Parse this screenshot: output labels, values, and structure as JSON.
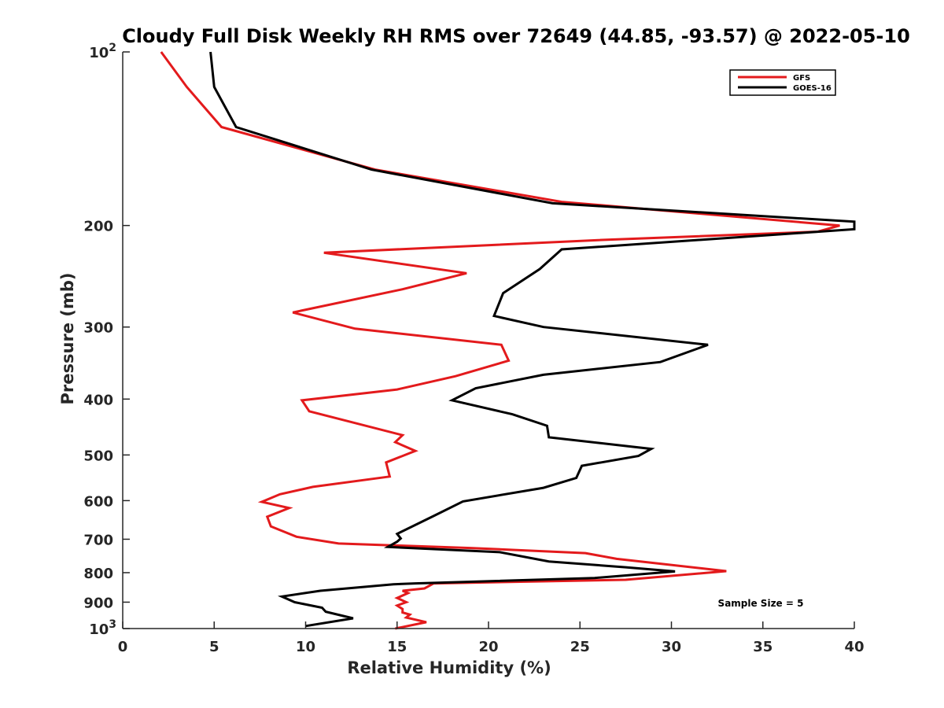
{
  "chart_data": {
    "type": "line",
    "title": "Cloudy Full Disk Weekly RH RMS over 72649 (44.85, -93.57) @ 2022-05-10",
    "xlabel": "Relative Humidity (%)",
    "ylabel": "Pressure (mb)",
    "xlim": [
      0,
      40
    ],
    "ylim": [
      100,
      1000
    ],
    "yscale": "log",
    "yreversed": true,
    "grid": false,
    "legend_position": "top-right",
    "x_ticks": [
      "0",
      "5",
      "10",
      "15",
      "20",
      "25",
      "30",
      "35",
      "40"
    ],
    "y_ticks": [
      {
        "value": 100,
        "label": "10",
        "sup": "2"
      },
      {
        "value": 200,
        "label": "200",
        "sup": ""
      },
      {
        "value": 300,
        "label": "300",
        "sup": ""
      },
      {
        "value": 400,
        "label": "400",
        "sup": ""
      },
      {
        "value": 500,
        "label": "500",
        "sup": ""
      },
      {
        "value": 600,
        "label": "600",
        "sup": ""
      },
      {
        "value": 700,
        "label": "700",
        "sup": ""
      },
      {
        "value": 800,
        "label": "800",
        "sup": ""
      },
      {
        "value": 900,
        "label": "900",
        "sup": ""
      },
      {
        "value": 1000,
        "label": "10",
        "sup": "3"
      }
    ],
    "annotation": "Sample Size = 5",
    "series": [
      {
        "name": "GFS",
        "color": "#e31a1c",
        "points": [
          [
            2.1,
            100
          ],
          [
            3.5,
            115
          ],
          [
            5.4,
            135
          ],
          [
            13.8,
            160
          ],
          [
            24.0,
            182
          ],
          [
            39.2,
            200
          ],
          [
            38.0,
            205
          ],
          [
            26.0,
            212
          ],
          [
            11.0,
            223
          ],
          [
            18.8,
            242
          ],
          [
            15.3,
            258
          ],
          [
            9.3,
            283
          ],
          [
            12.7,
            302
          ],
          [
            20.7,
            322
          ],
          [
            21.1,
            343
          ],
          [
            18.2,
            365
          ],
          [
            15.0,
            385
          ],
          [
            9.8,
            402
          ],
          [
            10.2,
            420
          ],
          [
            15.3,
            462
          ],
          [
            14.9,
            475
          ],
          [
            16.0,
            492
          ],
          [
            14.4,
            515
          ],
          [
            14.6,
            545
          ],
          [
            10.4,
            568
          ],
          [
            8.6,
            585
          ],
          [
            7.6,
            603
          ],
          [
            9.1,
            618
          ],
          [
            7.9,
            640
          ],
          [
            8.1,
            665
          ],
          [
            9.5,
            693
          ],
          [
            11.8,
            712
          ],
          [
            19.0,
            725
          ],
          [
            25.3,
            740
          ],
          [
            27.0,
            757
          ],
          [
            33.0,
            795
          ],
          [
            27.5,
            823
          ],
          [
            17.0,
            835
          ],
          [
            16.5,
            852
          ],
          [
            15.3,
            860
          ],
          [
            15.6,
            868
          ],
          [
            15.0,
            885
          ],
          [
            15.5,
            900
          ],
          [
            15.0,
            912
          ],
          [
            15.3,
            925
          ],
          [
            15.3,
            938
          ],
          [
            15.7,
            946
          ],
          [
            15.5,
            957
          ],
          [
            16.6,
            975
          ],
          [
            14.9,
            1000
          ]
        ]
      },
      {
        "name": "GOES-16",
        "color": "#000000",
        "points": [
          [
            4.8,
            100
          ],
          [
            5.0,
            115
          ],
          [
            6.2,
            135
          ],
          [
            13.6,
            160
          ],
          [
            23.5,
            183
          ],
          [
            40.0,
            197
          ],
          [
            40.0,
            203
          ],
          [
            24.0,
            220
          ],
          [
            22.8,
            238
          ],
          [
            20.8,
            262
          ],
          [
            20.3,
            287
          ],
          [
            23.0,
            300
          ],
          [
            32.0,
            322
          ],
          [
            29.4,
            345
          ],
          [
            23.0,
            363
          ],
          [
            19.3,
            383
          ],
          [
            18.0,
            402
          ],
          [
            21.3,
            425
          ],
          [
            23.2,
            445
          ],
          [
            23.3,
            466
          ],
          [
            28.9,
            488
          ],
          [
            28.2,
            502
          ],
          [
            25.1,
            522
          ],
          [
            24.8,
            548
          ],
          [
            23.0,
            570
          ],
          [
            18.6,
            602
          ],
          [
            17.0,
            638
          ],
          [
            15.0,
            685
          ],
          [
            15.2,
            698
          ],
          [
            15.0,
            707
          ],
          [
            14.5,
            722
          ],
          [
            20.6,
            737
          ],
          [
            23.3,
            765
          ],
          [
            27.5,
            783
          ],
          [
            30.2,
            796
          ],
          [
            25.8,
            817
          ],
          [
            16.0,
            835
          ],
          [
            14.8,
            838
          ],
          [
            10.8,
            860
          ],
          [
            8.7,
            880
          ],
          [
            9.4,
            900
          ],
          [
            10.9,
            920
          ],
          [
            11.1,
            935
          ],
          [
            12.6,
            960
          ],
          [
            10.0,
            990
          ]
        ]
      }
    ]
  }
}
